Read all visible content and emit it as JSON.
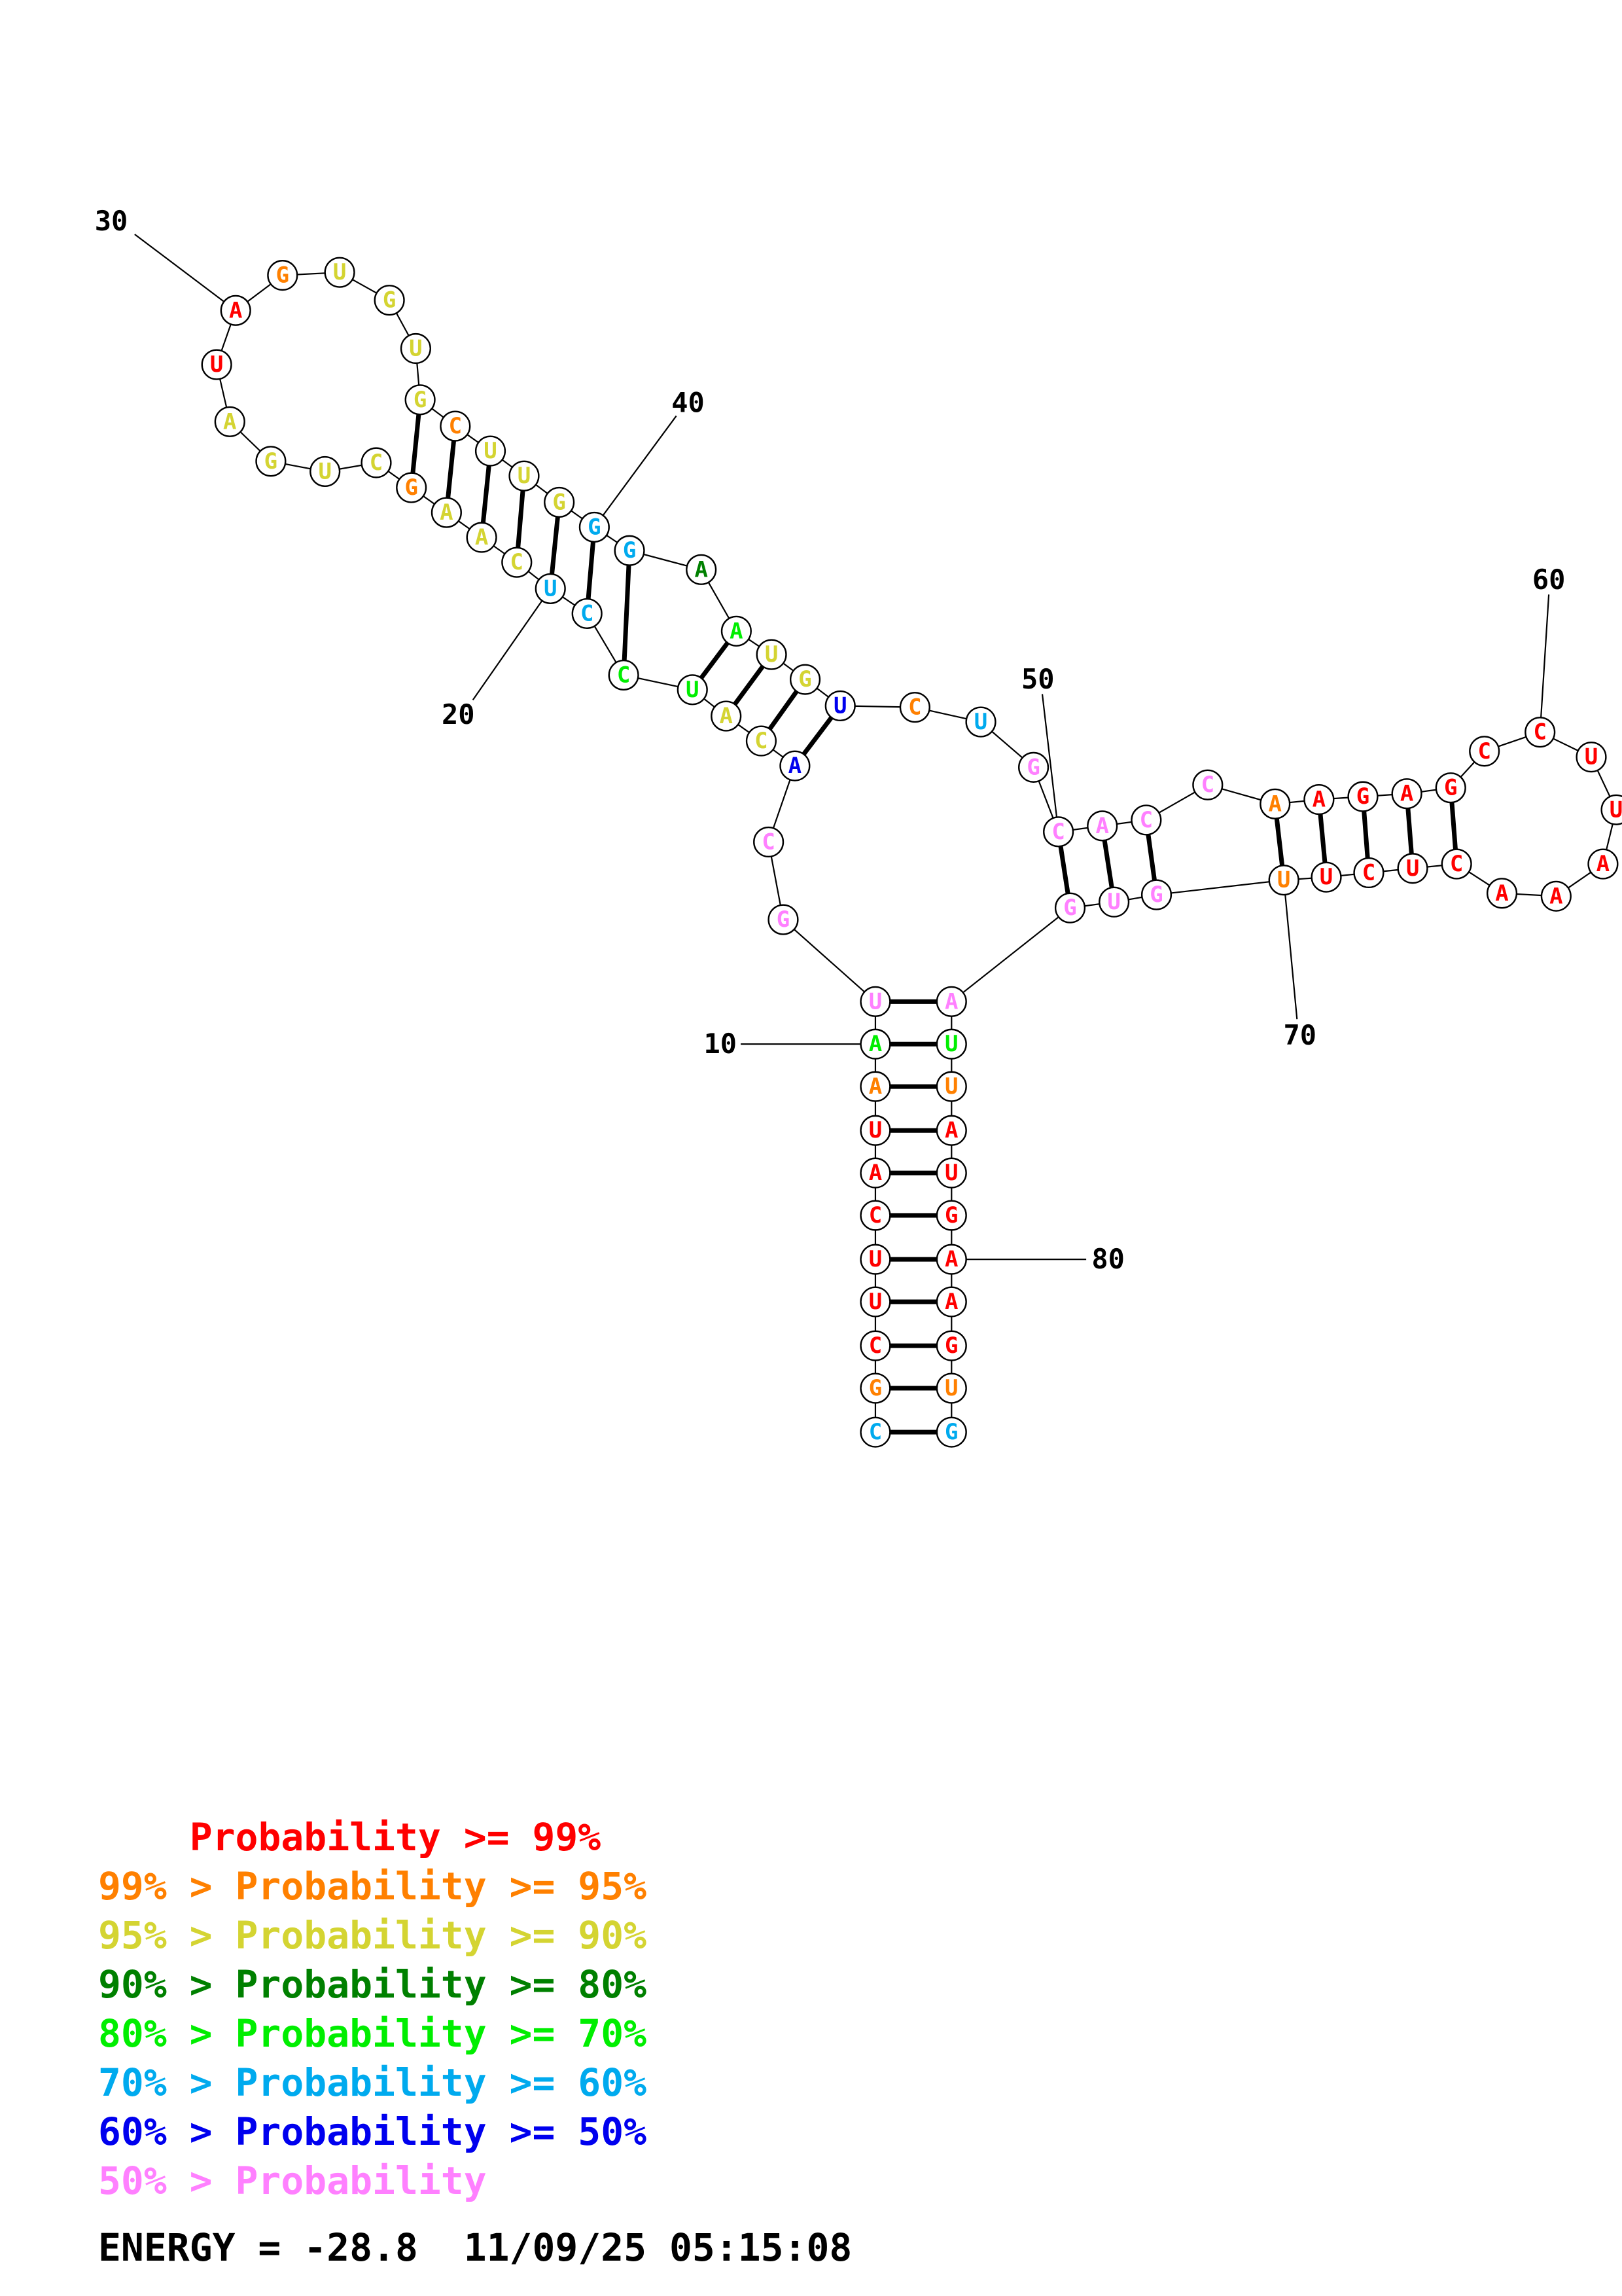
{
  "colors": {
    "p99": "#ff0000",
    "p95": "#ff8000",
    "p90": "#d4d432",
    "p80": "#008000",
    "p70": "#00ee00",
    "p60": "#00aaee",
    "p50": "#0000ee",
    "plow": "#ff80ff"
  },
  "nucleotides": [
    {
      "n": 1,
      "b": "C",
      "c": "p60"
    },
    {
      "n": 2,
      "b": "G",
      "c": "p95"
    },
    {
      "n": 3,
      "b": "C",
      "c": "p99"
    },
    {
      "n": 4,
      "b": "U",
      "c": "p99"
    },
    {
      "n": 5,
      "b": "U",
      "c": "p99"
    },
    {
      "n": 6,
      "b": "C",
      "c": "p99"
    },
    {
      "n": 7,
      "b": "A",
      "c": "p99"
    },
    {
      "n": 8,
      "b": "U",
      "c": "p99"
    },
    {
      "n": 9,
      "b": "A",
      "c": "p95"
    },
    {
      "n": 10,
      "b": "A",
      "c": "p70"
    },
    {
      "n": 11,
      "b": "U",
      "c": "plow"
    },
    {
      "n": 12,
      "b": "G",
      "c": "plow"
    },
    {
      "n": 13,
      "b": "C",
      "c": "plow"
    },
    {
      "n": 14,
      "b": "A",
      "c": "p50"
    },
    {
      "n": 15,
      "b": "C",
      "c": "p90"
    },
    {
      "n": 16,
      "b": "A",
      "c": "p90"
    },
    {
      "n": 17,
      "b": "U",
      "c": "p70"
    },
    {
      "n": 18,
      "b": "C",
      "c": "p70"
    },
    {
      "n": 19,
      "b": "C",
      "c": "p60"
    },
    {
      "n": 20,
      "b": "U",
      "c": "p60"
    },
    {
      "n": 21,
      "b": "C",
      "c": "p90"
    },
    {
      "n": 22,
      "b": "A",
      "c": "p90"
    },
    {
      "n": 23,
      "b": "A",
      "c": "p90"
    },
    {
      "n": 24,
      "b": "G",
      "c": "p95"
    },
    {
      "n": 25,
      "b": "C",
      "c": "p90"
    },
    {
      "n": 26,
      "b": "U",
      "c": "p90"
    },
    {
      "n": 27,
      "b": "G",
      "c": "p90"
    },
    {
      "n": 28,
      "b": "A",
      "c": "p90"
    },
    {
      "n": 29,
      "b": "U",
      "c": "p99"
    },
    {
      "n": 30,
      "b": "A",
      "c": "p99"
    },
    {
      "n": 31,
      "b": "G",
      "c": "p95"
    },
    {
      "n": 32,
      "b": "U",
      "c": "p90"
    },
    {
      "n": 33,
      "b": "G",
      "c": "p90"
    },
    {
      "n": 34,
      "b": "U",
      "c": "p90"
    },
    {
      "n": 35,
      "b": "G",
      "c": "p90"
    },
    {
      "n": 36,
      "b": "C",
      "c": "p95"
    },
    {
      "n": 37,
      "b": "U",
      "c": "p90"
    },
    {
      "n": 38,
      "b": "U",
      "c": "p90"
    },
    {
      "n": 39,
      "b": "G",
      "c": "p90"
    },
    {
      "n": 40,
      "b": "G",
      "c": "p60"
    },
    {
      "n": 41,
      "b": "G",
      "c": "p60"
    },
    {
      "n": 42,
      "b": "A",
      "c": "p80"
    },
    {
      "n": 43,
      "b": "A",
      "c": "p70"
    },
    {
      "n": 44,
      "b": "U",
      "c": "p90"
    },
    {
      "n": 45,
      "b": "G",
      "c": "p90"
    },
    {
      "n": 46,
      "b": "U",
      "c": "p50"
    },
    {
      "n": 47,
      "b": "C",
      "c": "p95"
    },
    {
      "n": 48,
      "b": "U",
      "c": "p60"
    },
    {
      "n": 49,
      "b": "G",
      "c": "plow"
    },
    {
      "n": 50,
      "b": "C",
      "c": "plow"
    },
    {
      "n": 51,
      "b": "A",
      "c": "plow"
    },
    {
      "n": 52,
      "b": "C",
      "c": "plow"
    },
    {
      "n": 53,
      "b": "C",
      "c": "plow"
    },
    {
      "n": 54,
      "b": "A",
      "c": "p95"
    },
    {
      "n": 55,
      "b": "A",
      "c": "p99"
    },
    {
      "n": 56,
      "b": "G",
      "c": "p99"
    },
    {
      "n": 57,
      "b": "A",
      "c": "p99"
    },
    {
      "n": 58,
      "b": "G",
      "c": "p99"
    },
    {
      "n": 59,
      "b": "C",
      "c": "p99"
    },
    {
      "n": 60,
      "b": "C",
      "c": "p99"
    },
    {
      "n": 61,
      "b": "U",
      "c": "p99"
    },
    {
      "n": 62,
      "b": "U",
      "c": "p99"
    },
    {
      "n": 63,
      "b": "A",
      "c": "p99"
    },
    {
      "n": 64,
      "b": "A",
      "c": "p99"
    },
    {
      "n": 65,
      "b": "A",
      "c": "p99"
    },
    {
      "n": 66,
      "b": "C",
      "c": "p99"
    },
    {
      "n": 67,
      "b": "U",
      "c": "p99"
    },
    {
      "n": 68,
      "b": "C",
      "c": "p99"
    },
    {
      "n": 69,
      "b": "U",
      "c": "p99"
    },
    {
      "n": 70,
      "b": "U",
      "c": "p95"
    },
    {
      "n": 71,
      "b": "G",
      "c": "plow"
    },
    {
      "n": 72,
      "b": "U",
      "c": "plow"
    },
    {
      "n": 73,
      "b": "G",
      "c": "plow"
    },
    {
      "n": 74,
      "b": "A",
      "c": "plow"
    },
    {
      "n": 75,
      "b": "U",
      "c": "p70"
    },
    {
      "n": 76,
      "b": "U",
      "c": "p95"
    },
    {
      "n": 77,
      "b": "A",
      "c": "p99"
    },
    {
      "n": 78,
      "b": "U",
      "c": "p99"
    },
    {
      "n": 79,
      "b": "G",
      "c": "p99"
    },
    {
      "n": 80,
      "b": "A",
      "c": "p99"
    },
    {
      "n": 81,
      "b": "A",
      "c": "p99"
    },
    {
      "n": 82,
      "b": "G",
      "c": "p99"
    },
    {
      "n": 83,
      "b": "U",
      "c": "p95"
    },
    {
      "n": 84,
      "b": "G",
      "c": "p60"
    }
  ],
  "pairs": [
    [
      1,
      84
    ],
    [
      2,
      83
    ],
    [
      3,
      82
    ],
    [
      4,
      81
    ],
    [
      5,
      80
    ],
    [
      6,
      79
    ],
    [
      7,
      78
    ],
    [
      8,
      77
    ],
    [
      9,
      76
    ],
    [
      10,
      75
    ],
    [
      11,
      74
    ],
    [
      14,
      46
    ],
    [
      15,
      45
    ],
    [
      16,
      44
    ],
    [
      17,
      43
    ],
    [
      18,
      41
    ],
    [
      19,
      40
    ],
    [
      20,
      39
    ],
    [
      21,
      38
    ],
    [
      22,
      37
    ],
    [
      23,
      36
    ],
    [
      24,
      35
    ],
    [
      50,
      73
    ],
    [
      51,
      72
    ],
    [
      52,
      71
    ],
    [
      54,
      70
    ],
    [
      55,
      69
    ],
    [
      56,
      68
    ],
    [
      57,
      67
    ],
    [
      58,
      66
    ]
  ],
  "index_labels": [
    {
      "n": 10,
      "text": "10"
    },
    {
      "n": 20,
      "text": "20"
    },
    {
      "n": 30,
      "text": "30"
    },
    {
      "n": 40,
      "text": "40"
    },
    {
      "n": 50,
      "text": "50"
    },
    {
      "n": 60,
      "text": "60"
    },
    {
      "n": 70,
      "text": "70"
    },
    {
      "n": 80,
      "text": "80"
    }
  ],
  "legend": [
    {
      "prefix": "    ",
      "text": "Probability >= 99%",
      "c": "p99"
    },
    {
      "prefix": "99% > ",
      "text": "Probability >= 95%",
      "c": "p95"
    },
    {
      "prefix": "95% > ",
      "text": "Probability >= 90%",
      "c": "p90"
    },
    {
      "prefix": "90% > ",
      "text": "Probability >= 80%",
      "c": "p80"
    },
    {
      "prefix": "80% > ",
      "text": "Probability >= 70%",
      "c": "p70"
    },
    {
      "prefix": "70% > ",
      "text": "Probability >= 60%",
      "c": "p60"
    },
    {
      "prefix": "60% > ",
      "text": "Probability >= 50%",
      "c": "p50"
    },
    {
      "prefix": "50% > ",
      "text": "Probability",
      "c": "plow"
    }
  ],
  "footer": {
    "energy": "ENERGY = -28.8",
    "timestamp": "11/09/25 05:15:08"
  }
}
